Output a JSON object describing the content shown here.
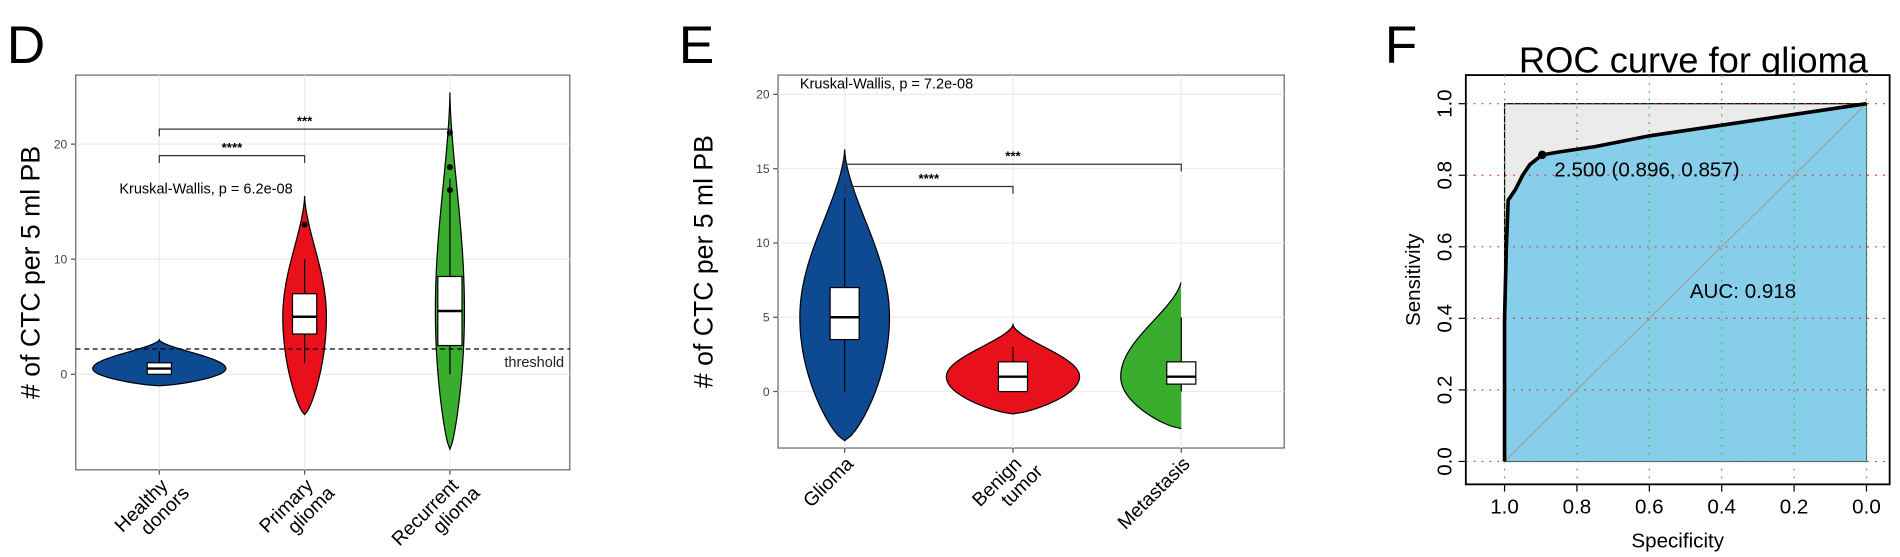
{
  "chart_data": [
    {
      "panel": "D",
      "type": "violin",
      "ylabel": "# of CTC per 5 ml PB",
      "categories": [
        [
          "Healthy",
          "donors"
        ],
        [
          "Primary",
          "glioma"
        ],
        [
          "Recurrent",
          "glioma"
        ]
      ],
      "ylim": [
        -8.3,
        26
      ],
      "yticks": [
        0,
        10,
        20
      ],
      "grid": true,
      "annotation": "Kruskal-Wallis, p = 6.2e-08",
      "threshold": {
        "value": 2.2,
        "label": "threshold"
      },
      "groups": [
        {
          "color": "#0d4a92",
          "violin": [
            -1,
            3
          ],
          "box": [
            0,
            0,
            0.5,
            1,
            2
          ],
          "outliers": []
        },
        {
          "color": "#e8101a",
          "violin": [
            -3.5,
            15.5
          ],
          "box": [
            1,
            3.5,
            5,
            7,
            10
          ],
          "outliers": [
            13
          ]
        },
        {
          "color": "#3aac2e",
          "violin": [
            -6.5,
            24.5
          ],
          "box": [
            0,
            2.5,
            5.5,
            8.5,
            17
          ],
          "outliers": [
            16,
            18,
            21
          ]
        }
      ],
      "comparisons": [
        {
          "from": 0,
          "to": 1,
          "y": 19,
          "label": "****"
        },
        {
          "from": 0,
          "to": 2,
          "y": 21.3,
          "label": "***"
        }
      ]
    },
    {
      "panel": "E",
      "type": "violin",
      "ylabel": "# of CTC per 5 ml PB",
      "categories": [
        [
          "Glioma"
        ],
        [
          "Benign",
          "tumor"
        ],
        [
          "Metastasis"
        ]
      ],
      "ylim": [
        -3.8,
        21.3
      ],
      "yticks": [
        0,
        5,
        10,
        15,
        20
      ],
      "grid": true,
      "annotation": "Kruskal-Wallis, p = 7.2e-08",
      "groups": [
        {
          "color": "#0d4a92",
          "violin": [
            -3.3,
            16.3
          ],
          "box": [
            0,
            3.5,
            5,
            7,
            13
          ],
          "outliers": []
        },
        {
          "color": "#e8101a",
          "violin": [
            -1.5,
            4.5
          ],
          "box": [
            0,
            0,
            1,
            2,
            3
          ],
          "outliers": []
        },
        {
          "color": "#3aac2e",
          "violin": [
            -2.5,
            7.5
          ],
          "box": [
            0,
            0.5,
            1,
            2,
            5
          ],
          "outliers": []
        }
      ],
      "comparisons": [
        {
          "from": 0,
          "to": 1,
          "y": 13.8,
          "label": "****"
        },
        {
          "from": 0,
          "to": 2,
          "y": 15.3,
          "label": "***"
        }
      ]
    },
    {
      "panel": "F",
      "type": "roc",
      "title": "ROC curve for glioma",
      "xlabel": "Specificity",
      "ylabel": "Sensitivity",
      "xlim": [
        1.107,
        -0.064
      ],
      "ylim": [
        -0.064,
        1.08
      ],
      "xticks": [
        {
          "value": 1,
          "label": "1.0"
        },
        0.8,
        0.6,
        0.4,
        0.2,
        {
          "value": 0,
          "label": "0.0"
        }
      ],
      "yticks": [
        {
          "value": 0,
          "label": "0.0"
        },
        0.2,
        0.4,
        0.6,
        0.8,
        {
          "value": 1,
          "label": "1.0"
        }
      ],
      "x": [
        1,
        1,
        0.995,
        0.99,
        0.97,
        0.95,
        0.93,
        0.896,
        0.85,
        0.75,
        0.6,
        0.4,
        0.2,
        0
      ],
      "values": [
        0,
        0.4,
        0.6,
        0.73,
        0.76,
        0.8,
        0.83,
        0.857,
        0.865,
        0.88,
        0.91,
        0.94,
        0.97,
        1
      ],
      "color": "#000000",
      "fill": "#87ceeb",
      "best_point": {
        "x": 0.896,
        "y": 0.857,
        "label": "2.500 (0.896, 0.857)"
      },
      "auc_label": "AUC: 0.918"
    }
  ]
}
